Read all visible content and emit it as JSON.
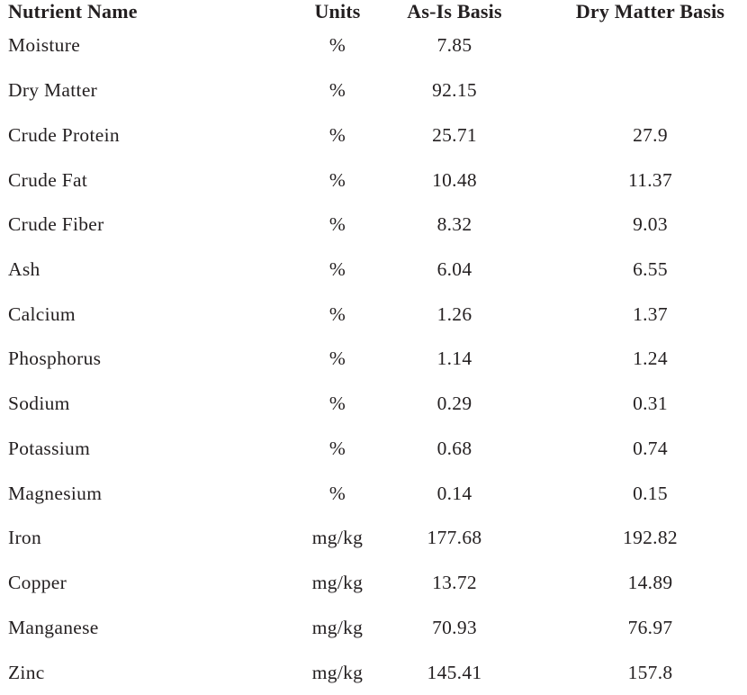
{
  "table": {
    "columns": [
      "Nutrient Name",
      "Units",
      "As-Is Basis",
      "Dry Matter Basis"
    ],
    "rows": [
      {
        "nutrient": "Moisture",
        "units": "%",
        "as_is": "7.85",
        "dry_matter": ""
      },
      {
        "nutrient": "Dry Matter",
        "units": "%",
        "as_is": "92.15",
        "dry_matter": ""
      },
      {
        "nutrient": "Crude Protein",
        "units": "%",
        "as_is": "25.71",
        "dry_matter": "27.9"
      },
      {
        "nutrient": "Crude Fat",
        "units": "%",
        "as_is": "10.48",
        "dry_matter": "11.37"
      },
      {
        "nutrient": "Crude Fiber",
        "units": "%",
        "as_is": "8.32",
        "dry_matter": "9.03"
      },
      {
        "nutrient": "Ash",
        "units": "%",
        "as_is": "6.04",
        "dry_matter": "6.55"
      },
      {
        "nutrient": "Calcium",
        "units": "%",
        "as_is": "1.26",
        "dry_matter": "1.37"
      },
      {
        "nutrient": "Phosphorus",
        "units": "%",
        "as_is": "1.14",
        "dry_matter": "1.24"
      },
      {
        "nutrient": "Sodium",
        "units": "%",
        "as_is": "0.29",
        "dry_matter": "0.31"
      },
      {
        "nutrient": "Potassium",
        "units": "%",
        "as_is": "0.68",
        "dry_matter": "0.74"
      },
      {
        "nutrient": "Magnesium",
        "units": "%",
        "as_is": "0.14",
        "dry_matter": "0.15"
      },
      {
        "nutrient": "Iron",
        "units": "mg/kg",
        "as_is": "177.68",
        "dry_matter": "192.82"
      },
      {
        "nutrient": "Copper",
        "units": "mg/kg",
        "as_is": "13.72",
        "dry_matter": "14.89"
      },
      {
        "nutrient": "Manganese",
        "units": "mg/kg",
        "as_is": "70.93",
        "dry_matter": "76.97"
      },
      {
        "nutrient": "Zinc",
        "units": "mg/kg",
        "as_is": "145.41",
        "dry_matter": "157.8"
      }
    ],
    "text_color": "#231f20",
    "background_color": "#ffffff"
  }
}
